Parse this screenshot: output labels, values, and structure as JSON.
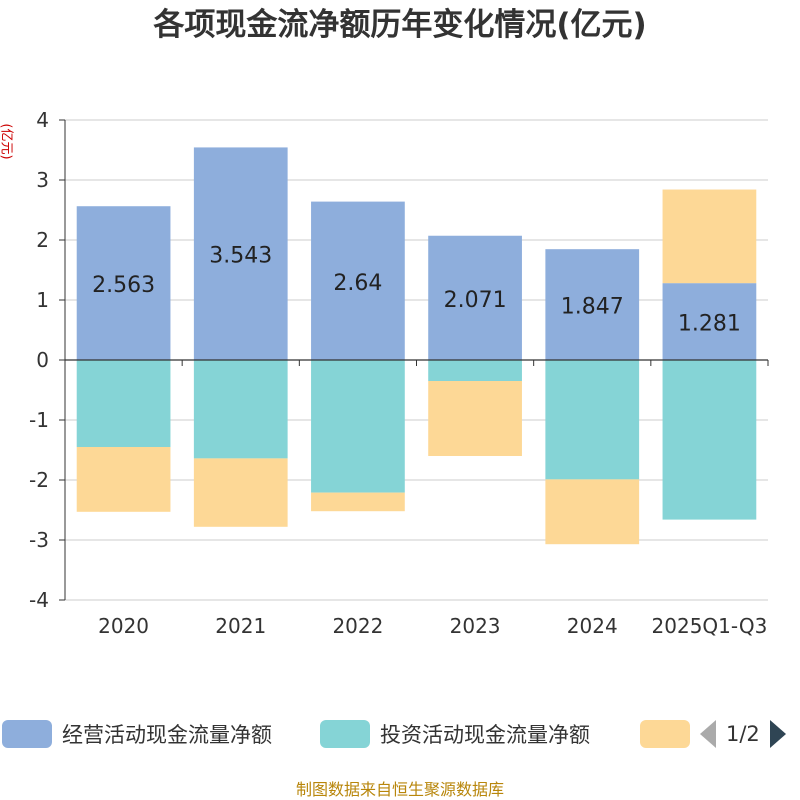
{
  "title": "各项现金流净额历年变化情况(亿元)",
  "y_unit": "(亿元)",
  "colors": {
    "operating": "#8eaedc",
    "investing": "#85d4d6",
    "financing": "#fdd896"
  },
  "chart_data": {
    "type": "bar",
    "stacked": true,
    "categories": [
      "2020",
      "2021",
      "2022",
      "2023",
      "2024",
      "2025Q1-Q3"
    ],
    "ylim": [
      -4,
      4
    ],
    "yticks": [
      "4",
      "3",
      "2",
      "1",
      "0",
      "-1",
      "-2",
      "-3",
      "-4"
    ],
    "ytick_values": [
      4,
      3,
      2,
      1,
      0,
      -1,
      -2,
      -3,
      -4
    ],
    "series": [
      {
        "name": "经营活动现金流量净额",
        "values": [
          2.563,
          3.543,
          2.64,
          2.071,
          1.847,
          1.281
        ],
        "labels": [
          "2.563",
          "3.543",
          "2.64",
          "2.071",
          "1.847",
          "1.281"
        ]
      },
      {
        "name": "投资活动现金流量净额",
        "values": [
          -1.45,
          -1.64,
          -2.21,
          -0.35,
          -1.99,
          -2.66
        ]
      },
      {
        "values": [
          -1.08,
          -1.14,
          -0.31,
          -1.25,
          -1.08,
          1.56
        ]
      }
    ],
    "grid": true,
    "legend": "bottom"
  },
  "legend": {
    "items": [
      "经营活动现金流量净额",
      "投资活动现金流量净额",
      ""
    ],
    "page": "1/2"
  },
  "source": "制图数据来自恒生聚源数据库"
}
